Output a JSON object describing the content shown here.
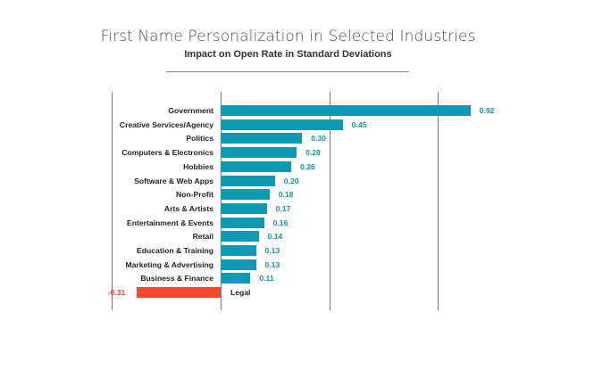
{
  "chart_data": {
    "type": "bar",
    "orientation": "horizontal",
    "title": "First Name Personalization in Selected Industries",
    "subtitle": "Impact on Open Rate in Standard Deviations",
    "xlabel": "",
    "ylabel": "",
    "categories": [
      "Government",
      "Creative Services/Agency",
      "Politics",
      "Computers & Electronics",
      "Hobbies",
      "Software & Web Apps",
      "Non-Profit",
      "Arts & Artists",
      "Entertainment & Events",
      "Retail",
      "Education & Training",
      "Marketing & Advertising",
      "Business & Finance",
      "Legal"
    ],
    "values": [
      0.92,
      0.45,
      0.3,
      0.28,
      0.26,
      0.2,
      0.18,
      0.17,
      0.16,
      0.14,
      0.13,
      0.13,
      0.11,
      -0.31
    ],
    "value_labels": [
      "0.92",
      "0.45",
      "0.30",
      "0.28",
      "0.26",
      "0.20",
      "0.18",
      "0.17",
      "0.16",
      "0.14",
      "0.13",
      "0.13",
      "0.11",
      "-0.31"
    ],
    "xlim": [
      -0.4,
      1.0
    ],
    "gridlines_at": [
      -0.4,
      0.0,
      0.4,
      0.8
    ],
    "grid": true,
    "legend": null,
    "colors": {
      "positive": "#0e9ab5",
      "negative": "#f04a2e",
      "positive_label": "#1590ad",
      "negative_label": "#e8442c"
    }
  }
}
